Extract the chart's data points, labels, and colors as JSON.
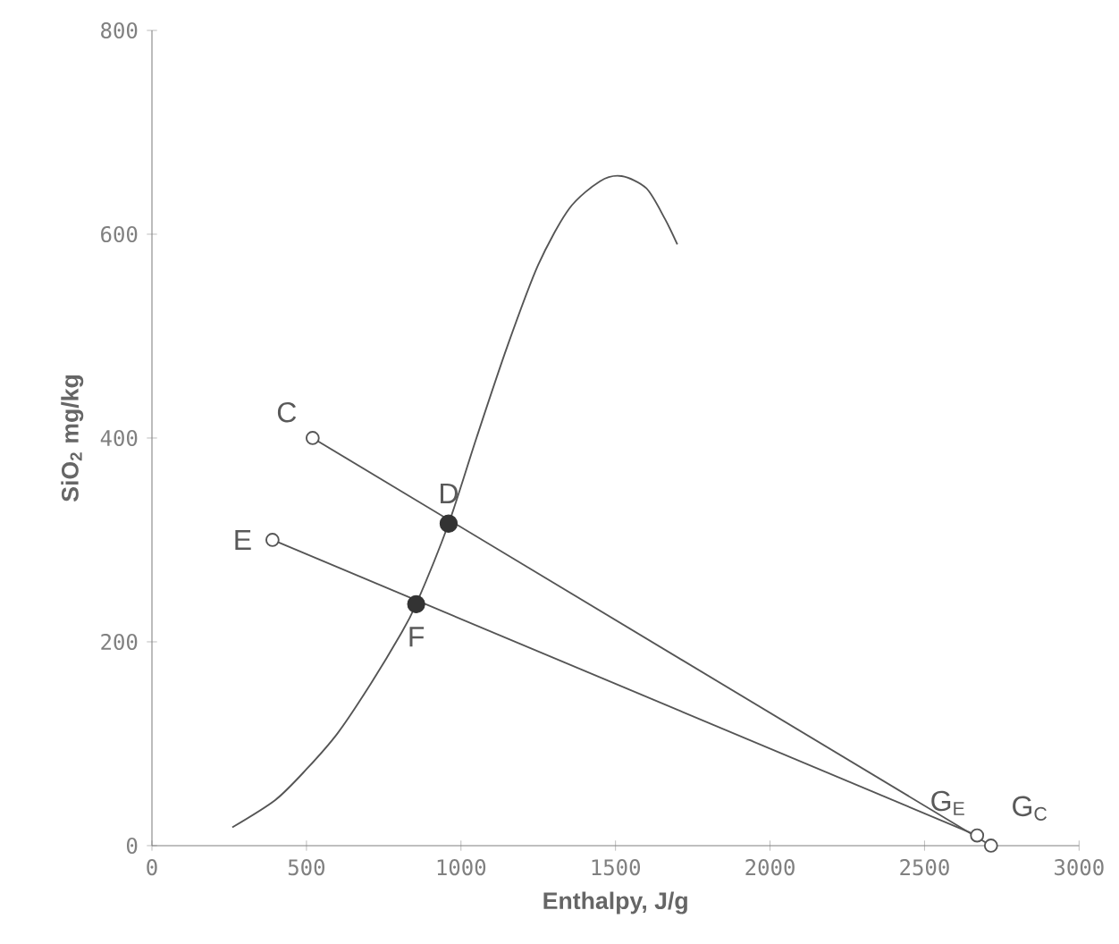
{
  "chart_data": {
    "type": "line",
    "xlabel": "Enthalpy, J/g",
    "ylabel": "SiO$_{2}$ mg/kg",
    "xlim": [
      0,
      3000
    ],
    "ylim": [
      0,
      800
    ],
    "xticks": [
      0,
      500,
      1000,
      1500,
      2000,
      2500,
      3000
    ],
    "yticks": [
      0,
      200,
      400,
      600,
      800
    ],
    "series": [
      {
        "color": "#555555",
        "marker": "none",
        "x": [
          260,
          400,
          500,
          600,
          700,
          800,
          855,
          960,
          1050,
          1150,
          1250,
          1350,
          1450,
          1520,
          1600,
          1660,
          1700
        ],
        "values": [
          18,
          45,
          75,
          110,
          155,
          205,
          237,
          316,
          400,
          490,
          570,
          625,
          652,
          657,
          645,
          615,
          590
        ]
      },
      {
        "color": "#555555",
        "marker": "circle",
        "x": [
          520,
          2715
        ],
        "values": [
          400,
          0
        ]
      },
      {
        "color": "#555555",
        "marker": "circle",
        "x": [
          390,
          2670
        ],
        "values": [
          300,
          10
        ]
      },
      {
        "type": "scatter",
        "color": "#333333",
        "marker": "circle",
        "x": [
          960,
          855
        ],
        "values": [
          316,
          237
        ]
      }
    ],
    "annotations": [
      {
        "text": "C",
        "x": 520,
        "y": 400
      },
      {
        "text": "D",
        "x": 960,
        "y": 316
      },
      {
        "text": "E",
        "x": 390,
        "y": 300
      },
      {
        "text": "F",
        "x": 855,
        "y": 237
      },
      {
        "text": "G$_{E}$",
        "x": 2670,
        "y": 10
      },
      {
        "text": "G$_{C}$",
        "x": 2715,
        "y": 0
      }
    ]
  }
}
